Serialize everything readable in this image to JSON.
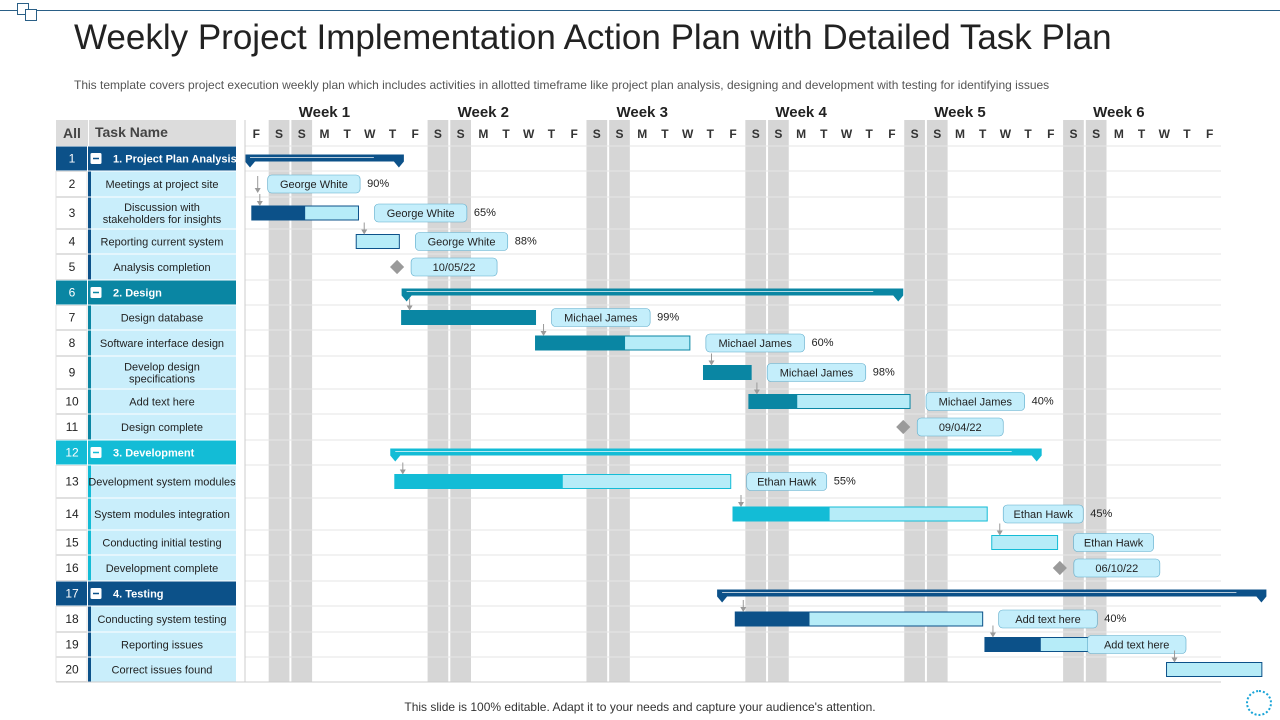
{
  "title": "Weekly Project Implementation Action Plan with Detailed Task Plan",
  "subtitle": "This template covers project execution weekly plan which includes activities in allotted timeframe like project plan analysis, designing and development with testing for identifying issues",
  "footer": "This slide is 100% editable. Adapt it to your needs and capture your audience's attention.",
  "colors": {
    "group1": "#0c5189",
    "group2": "#0a86a3",
    "group3": "#13bcd6",
    "group4": "#0c5189",
    "bar_light": "#b6ecf8",
    "label_bg": "#c4eefb",
    "weekend": "#d6d6d6",
    "task_cell": "#c9eefb",
    "header_bg": "#dcdcdc",
    "milestone": "#9a9a9a"
  },
  "header": {
    "all_label": "All",
    "task_label": "Task Name"
  },
  "chart_data": {
    "type": "gantt",
    "weeks": [
      "Week 1",
      "Week 2",
      "Week 3",
      "Week 4",
      "Week 5",
      "Week 6"
    ],
    "day_labels": [
      "F",
      "S",
      "S",
      "M",
      "T",
      "W",
      "T",
      "F",
      "S",
      "S",
      "M",
      "T",
      "W",
      "T",
      "F",
      "S",
      "S",
      "M",
      "T",
      "W",
      "T",
      "F",
      "S",
      "S",
      "M",
      "T",
      "W",
      "T",
      "F",
      "S",
      "S",
      "M",
      "T",
      "W",
      "T",
      "F",
      "S",
      "S",
      "M",
      "T",
      "W",
      "T",
      "F"
    ],
    "rows": [
      {
        "num": "1",
        "name": "1. Project Plan Analysis",
        "type": "group",
        "group": 1,
        "start": 0,
        "end": 7.0
      },
      {
        "num": "2",
        "name": "Meetings at project site",
        "type": "task",
        "group": 1,
        "label": "George White",
        "pct": "90%"
      },
      {
        "num": "3",
        "name": "Discussion with stakeholders for insights",
        "type": "task",
        "group": 1,
        "start": 0.3,
        "end": 5.0,
        "progress": 0.5,
        "label": "George White",
        "pct": "65%"
      },
      {
        "num": "4",
        "name": "Reporting current system",
        "type": "task",
        "group": 1,
        "start": 4.9,
        "end": 6.8,
        "progress": 0,
        "label": "George White",
        "pct": "88%"
      },
      {
        "num": "5",
        "name": "Analysis completion",
        "type": "milestone",
        "group": 1,
        "at": 6.7,
        "label": "10/05/22"
      },
      {
        "num": "6",
        "name": "2. Design",
        "type": "group",
        "group": 2,
        "start": 6.9,
        "end": 29.0
      },
      {
        "num": "7",
        "name": "Design database",
        "type": "task",
        "group": 2,
        "start": 6.9,
        "end": 12.8,
        "progress": 1.0,
        "label": "Michael James",
        "pct": "99%"
      },
      {
        "num": "8",
        "name": "Software interface design",
        "type": "task",
        "group": 2,
        "start": 12.8,
        "end": 19.6,
        "progress": 0.58,
        "label": "Michael James",
        "pct": "60%"
      },
      {
        "num": "9",
        "name": "Develop design specifications",
        "type": "task",
        "group": 2,
        "start": 20.2,
        "end": 22.3,
        "progress": 1.0,
        "label": "Michael James",
        "pct": "98%"
      },
      {
        "num": "10",
        "name": "Add text here",
        "type": "task",
        "group": 2,
        "start": 22.2,
        "end": 29.3,
        "progress": 0.3,
        "label": "Michael James",
        "pct": "40%"
      },
      {
        "num": "11",
        "name": "Design complete",
        "type": "milestone",
        "group": 2,
        "at": 29.0,
        "label": "09/04/22"
      },
      {
        "num": "12",
        "name": "3. Development",
        "type": "group",
        "group": 3,
        "start": 6.4,
        "end": 35.1
      },
      {
        "num": "13",
        "name": "Development system modules",
        "type": "task",
        "group": 3,
        "start": 6.6,
        "end": 21.4,
        "progress": 0.5,
        "label": "Ethan Hawk",
        "pct": "55%"
      },
      {
        "num": "14",
        "name": "System modules integration",
        "type": "task",
        "group": 3,
        "start": 21.5,
        "end": 32.7,
        "progress": 0.38,
        "label": "Ethan Hawk",
        "pct": "45%"
      },
      {
        "num": "15",
        "name": "Conducting initial testing",
        "type": "task",
        "group": 3,
        "start": 32.9,
        "end": 35.8,
        "progress": 0,
        "label": "Ethan Hawk",
        "pct": ""
      },
      {
        "num": "16",
        "name": "Development complete",
        "type": "milestone",
        "group": 3,
        "at": 35.9,
        "label": "06/10/22"
      },
      {
        "num": "17",
        "name": "4. Testing",
        "type": "group",
        "group": 4,
        "start": 20.8,
        "end": 45.0
      },
      {
        "num": "18",
        "name": "Conducting system testing",
        "type": "task",
        "group": 4,
        "start": 21.6,
        "end": 32.5,
        "progress": 0.3,
        "label": "Add text here",
        "pct": "40%"
      },
      {
        "num": "19",
        "name": "Reporting issues",
        "type": "task",
        "group": 4,
        "start": 32.6,
        "end": 40.8,
        "progress": 0.3,
        "label": "Add text here",
        "pct": ""
      },
      {
        "num": "20",
        "name": "Correct issues found",
        "type": "task",
        "group": 4,
        "start": 40.6,
        "end": 44.8,
        "progress": 0,
        "label": "",
        "pct": ""
      }
    ]
  }
}
